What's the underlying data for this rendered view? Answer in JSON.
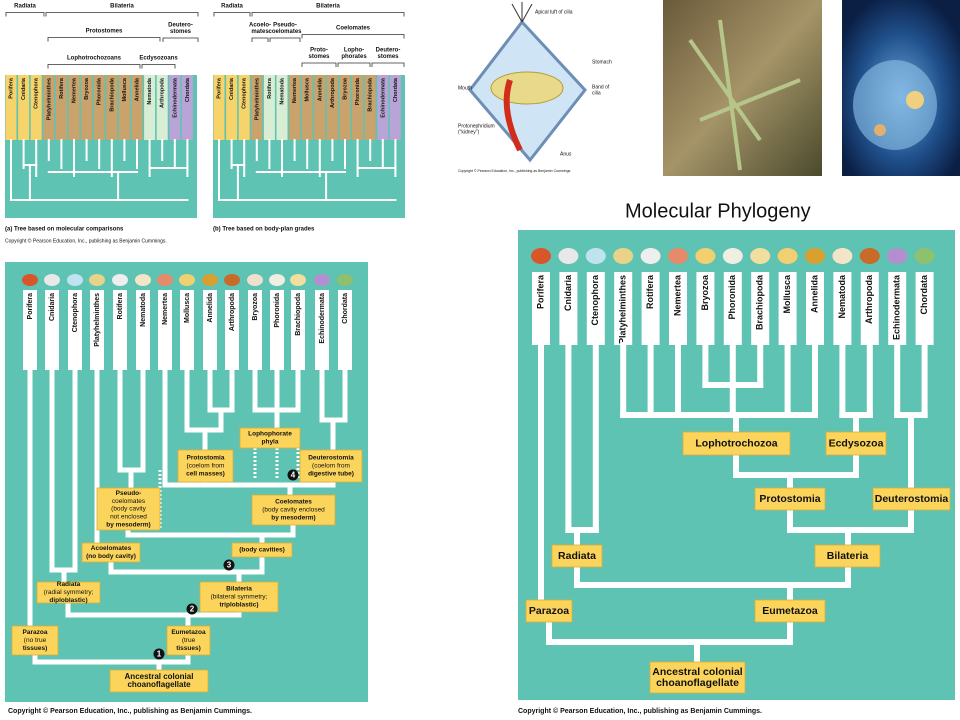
{
  "slide_title": "Molecular Phylogeny",
  "top_left": {
    "tree_a": {
      "groups": [
        {
          "lines": [
            "Radiata"
          ]
        },
        {
          "lines": [
            "Bilateria"
          ]
        },
        {
          "lines": [
            "Protostomes"
          ]
        },
        {
          "lines": [
            "Deutero-",
            "stomes"
          ]
        },
        {
          "lines": [
            "Lophotrochozoans"
          ]
        },
        {
          "lines": [
            "Ecdysozoans"
          ]
        }
      ],
      "taxa": [
        "Porifera",
        "Cnidaria",
        "Ctenophora",
        "Platyhelminthes",
        "Rotifera",
        "Nemertea",
        "Bryozoa",
        "Phoronida",
        "Brachiopoda",
        "Mollusca",
        "Annelida",
        "Nematoda",
        "Arthropoda",
        "Echinodermata",
        "Chordata"
      ],
      "caption": "(a) Tree based on molecular comparisons"
    },
    "tree_b": {
      "groups": [
        {
          "lines": [
            "Radiata"
          ]
        },
        {
          "lines": [
            "Bilateria"
          ]
        },
        {
          "lines": [
            "Acoelo-",
            "mates"
          ]
        },
        {
          "lines": [
            "Pseudo-",
            "coelomates"
          ]
        },
        {
          "lines": [
            "Coelomates"
          ]
        },
        {
          "lines": [
            "Proto-",
            "stomes"
          ]
        },
        {
          "lines": [
            "Lopho-",
            "phorates"
          ]
        },
        {
          "lines": [
            "Deutero-",
            "stomes"
          ]
        }
      ],
      "taxa": [
        "Porifera",
        "Cnidaria",
        "Ctenophora",
        "Platyhelminthes",
        "Rotifera",
        "Nematoda",
        "Nemertea",
        "Mollusca",
        "Annelida",
        "Arthropoda",
        "Bryozoa",
        "Phoronida",
        "Brachiopoda",
        "Echinodermata",
        "Chordata"
      ],
      "caption": "(b) Tree based on body-plan grades"
    },
    "copyright": "Copyright © Pearson Education, Inc., publishing as Benjamin Cummings."
  },
  "larva": {
    "labels": [
      {
        "lines": [
          "Apical tuft of cilia"
        ]
      },
      {
        "lines": [
          "Stomach"
        ]
      },
      {
        "lines": [
          "Band of",
          "cilia"
        ]
      },
      {
        "lines": [
          "Mouth"
        ]
      },
      {
        "lines": [
          "Protonephridium",
          "(“kidney”)"
        ]
      },
      {
        "lines": [
          "Anus"
        ]
      }
    ],
    "copyright": "Copyright © Pearson Education, Inc., publishing as Benjamin Cummings."
  },
  "bottom_left": {
    "taxa": [
      "Porifera",
      "Cnidaria",
      "Ctenophora",
      "Platyhelminthes",
      "Rotifera",
      "Nematoda",
      "Nemertea",
      "Mollusca",
      "Annelida",
      "Arthropoda",
      "Bryozoa",
      "Phoronida",
      "Brachiopoda",
      "Echinodermata",
      "Chordata"
    ],
    "boxes": [
      {
        "lines": [
          "Protostomia",
          "(coelom from",
          "cell masses)"
        ]
      },
      {
        "lines": [
          "Lophophorate",
          "phyla"
        ]
      },
      {
        "lines": [
          "Deuterostomia",
          "(coelom from",
          "digestive tube)"
        ]
      },
      {
        "lines": [
          "Pseudo-",
          "coelomates",
          "(body cavity",
          "not enclosed",
          "by mesoderm)"
        ]
      },
      {
        "lines": [
          "Coelomates",
          "(body cavity enclosed",
          "by mesoderm)"
        ]
      },
      {
        "lines": [
          "Acoelomates",
          "(no body cavity)"
        ]
      },
      {
        "lines": [
          "(body cavities)"
        ]
      },
      {
        "lines": [
          "Radiata",
          "(radial symmetry;",
          "diploblastic)"
        ]
      },
      {
        "lines": [
          "Bilateria",
          "(bilateral symmetry;",
          "triploblastic)"
        ]
      },
      {
        "lines": [
          "Parazoa",
          "(no true",
          "tissues)"
        ]
      },
      {
        "lines": [
          "Eumetazoa",
          "(true",
          "tissues)"
        ]
      },
      {
        "lines": [
          "Ancestral colonial",
          "choanoflagellate"
        ]
      }
    ],
    "steps": [
      "1",
      "2",
      "3",
      "4"
    ],
    "copyright": "Copyright © Pearson Education, Inc., publishing as Benjamin Cummings."
  },
  "bottom_right": {
    "taxa": [
      "Porifera",
      "Cnidaria",
      "Ctenophora",
      "Platyhelminthes",
      "Rotifera",
      "Nemertea",
      "Bryozoa",
      "Phoronida",
      "Brachiopoda",
      "Mollusca",
      "Annelida",
      "Nematoda",
      "Arthropoda",
      "Echinodermata",
      "Chordata"
    ],
    "boxes": [
      {
        "lines": [
          "Lophotrochozoa"
        ]
      },
      {
        "lines": [
          "Ecdysozoa"
        ]
      },
      {
        "lines": [
          "Protostomia"
        ]
      },
      {
        "lines": [
          "Deuterostomia"
        ]
      },
      {
        "lines": [
          "Radiata"
        ]
      },
      {
        "lines": [
          "Bilateria"
        ]
      },
      {
        "lines": [
          "Parazoa"
        ]
      },
      {
        "lines": [
          "Eumetazoa"
        ]
      },
      {
        "lines": [
          "Ancestral colonial",
          "choanoflagellate"
        ]
      }
    ],
    "copyright": "Copyright © Pearson Education, Inc., publishing as Benjamin Cummings."
  }
}
